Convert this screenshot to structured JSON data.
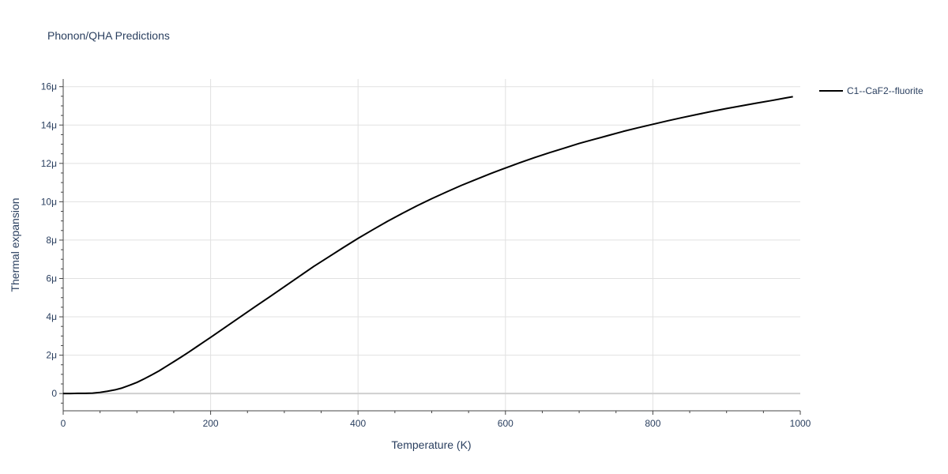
{
  "chart_data": {
    "type": "line",
    "title": "Phonon/QHA Predictions",
    "xlabel": "Temperature (K)",
    "ylabel": "Thermal expansion",
    "xlim": [
      0,
      1000
    ],
    "ylim": [
      -0.9,
      16.4
    ],
    "y_unit_scale": "μ",
    "x_ticks": [
      {
        "value": 0,
        "label": "0"
      },
      {
        "value": 200,
        "label": "200"
      },
      {
        "value": 400,
        "label": "400"
      },
      {
        "value": 600,
        "label": "600"
      },
      {
        "value": 800,
        "label": "800"
      },
      {
        "value": 1000,
        "label": "1000"
      }
    ],
    "y_ticks": [
      {
        "value": 0,
        "label": "0"
      },
      {
        "value": 2,
        "label": "2μ"
      },
      {
        "value": 4,
        "label": "4μ"
      },
      {
        "value": 6,
        "label": "6μ"
      },
      {
        "value": 8,
        "label": "8μ"
      },
      {
        "value": 10,
        "label": "10μ"
      },
      {
        "value": 12,
        "label": "12μ"
      },
      {
        "value": 14,
        "label": "14μ"
      },
      {
        "value": 16,
        "label": "16μ"
      }
    ],
    "grid": true,
    "legend_position": "top-right",
    "series": [
      {
        "name": "C1--CaF2--fluorite",
        "color": "#000000",
        "x": [
          0,
          10,
          20,
          30,
          40,
          50,
          60,
          70,
          80,
          90,
          100,
          110,
          120,
          130,
          140,
          150,
          160,
          170,
          180,
          190,
          200,
          220,
          240,
          260,
          280,
          300,
          320,
          340,
          360,
          380,
          400,
          420,
          440,
          460,
          480,
          500,
          520,
          540,
          560,
          580,
          600,
          620,
          640,
          660,
          680,
          700,
          720,
          740,
          760,
          780,
          800,
          820,
          840,
          860,
          880,
          900,
          920,
          940,
          960,
          980,
          990
        ],
        "y": [
          0.0,
          0.0,
          0.01,
          0.01,
          0.02,
          0.06,
          0.12,
          0.19,
          0.29,
          0.43,
          0.58,
          0.77,
          0.97,
          1.18,
          1.42,
          1.66,
          1.9,
          2.15,
          2.41,
          2.67,
          2.93,
          3.46,
          3.99,
          4.52,
          5.04,
          5.57,
          6.1,
          6.63,
          7.12,
          7.61,
          8.09,
          8.54,
          8.98,
          9.39,
          9.79,
          10.16,
          10.51,
          10.85,
          11.16,
          11.47,
          11.76,
          12.04,
          12.31,
          12.56,
          12.8,
          13.04,
          13.25,
          13.46,
          13.67,
          13.86,
          14.04,
          14.22,
          14.39,
          14.55,
          14.71,
          14.86,
          15.0,
          15.14,
          15.27,
          15.41,
          15.48
        ]
      }
    ]
  }
}
